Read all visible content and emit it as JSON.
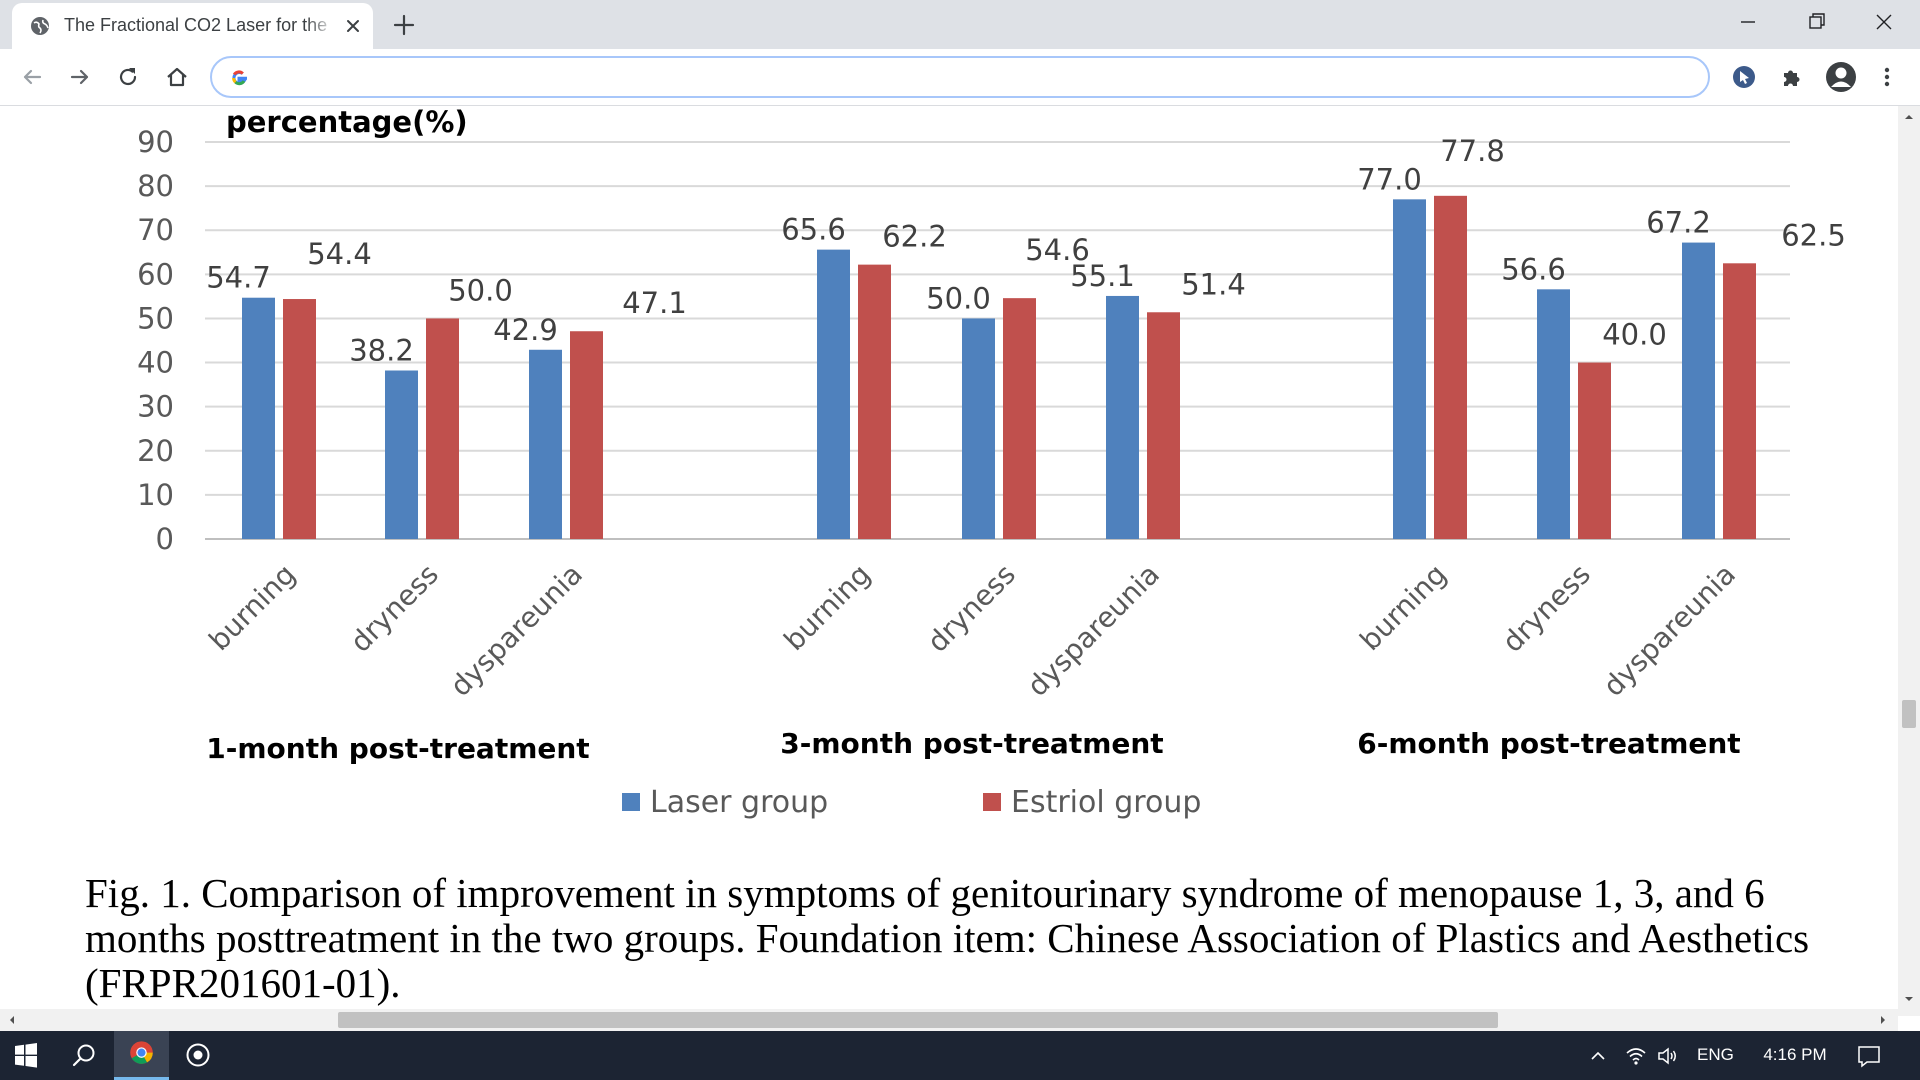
{
  "browser": {
    "tab_title": "The Fractional CO2 Laser for the",
    "address_value": "",
    "icons": {
      "favicon": "globe-icon",
      "close": "close-icon",
      "new_tab": "plus-icon",
      "back": "back-arrow-icon",
      "forward": "forward-arrow-icon",
      "reload": "reload-icon",
      "home": "home-icon",
      "search_engine": "google-g-icon",
      "extension_1": "cursor-extension-icon",
      "extension_2": "puzzle-icon",
      "profile": "profile-icon",
      "menu": "kebab-menu-icon"
    }
  },
  "chart_data": {
    "type": "bar",
    "ylabel": "percentage(%)",
    "ylim": [
      0,
      90
    ],
    "yticks": [
      "0",
      "10",
      "20",
      "30",
      "40",
      "50",
      "60",
      "70",
      "80",
      "90"
    ],
    "grid": true,
    "legend_position": "bottom",
    "groups": [
      "1-month post-treatment",
      "3-month post-treatment",
      "6-month post-treatment"
    ],
    "categories": [
      "burning",
      "dryness",
      "dyspareunia",
      "burning",
      "dryness",
      "dyspareunia",
      "burning",
      "dryness",
      "dyspareunia"
    ],
    "series": [
      {
        "name": "Laser group",
        "color": "#4f81bd",
        "values": [
          54.7,
          38.2,
          42.9,
          65.6,
          50.0,
          55.1,
          77.0,
          56.6,
          67.2
        ],
        "labels": [
          "54.7",
          "38.2",
          "42.9",
          "65.6",
          "50.0",
          "55.1",
          "77.0",
          "56.6",
          "67.2"
        ]
      },
      {
        "name": "Estriol group",
        "color": "#c0504d",
        "values": [
          54.4,
          50.0,
          47.1,
          62.2,
          54.6,
          51.4,
          77.8,
          40.0,
          62.5
        ],
        "labels": [
          "54.4",
          "50.0",
          "47.1",
          "62.2",
          "54.6",
          "51.4",
          "77.8",
          "40.0",
          "62.5"
        ]
      }
    ]
  },
  "caption": "Fig. 1. Comparison of improvement in symptoms of genitourinary syndrome of menopause 1, 3, and 6 months posttreatment in the two groups. Foundation item: Chinese Association of Plastics and Aesthetics (FRPR201601-01).",
  "taskbar": {
    "language": "ENG",
    "clock": "4:16 PM",
    "icons": [
      "windows-start-icon",
      "search-icon",
      "chrome-icon",
      "app-icon",
      "chevron-up-icon",
      "network-icon",
      "volume-icon",
      "notification-icon"
    ]
  }
}
